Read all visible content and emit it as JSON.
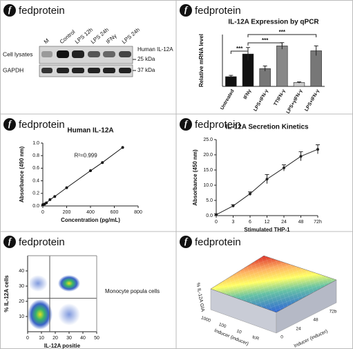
{
  "logo": "f",
  "brand": "fedprotein",
  "blot": {
    "lanes": [
      "M",
      "Control",
      "LPS 12h",
      "LPS 24h",
      "IFNγ",
      "LPS 24h"
    ],
    "rows": [
      "Cell lysates",
      "GAPDH"
    ],
    "markers": [
      "Human IL-12A",
      "25 kDa",
      "37 kDa"
    ]
  },
  "chart_data": [
    {
      "type": "bar",
      "title": "IL-12A Expression by qPCR",
      "ylabel": "Relative mRNA level",
      "categories": [
        "Untreated",
        "IFNγ",
        "LPS+IFN-γ",
        "TTIFN-γ",
        "LPS+γIFN-γ",
        "LPS+IFN-γ"
      ],
      "values": [
        0.3,
        1.0,
        0.55,
        1.25,
        0.12,
        1.1
      ],
      "errors": [
        0.04,
        0.2,
        0.08,
        0.1,
        0.02,
        0.15
      ],
      "colors": [
        "#111111",
        "#111111",
        "#777777",
        "#888888",
        "#cccccc",
        "#777777"
      ],
      "ylim": [
        0,
        1.6
      ],
      "brackets": [
        {
          "label": "***",
          "from": 0,
          "to": 1
        },
        {
          "label": "***",
          "from": 1,
          "to": 3
        },
        {
          "label": "***",
          "from": 1,
          "to": 5
        }
      ]
    },
    {
      "type": "line",
      "title": "Human IL-12A",
      "xlabel": "Concentration (pg/mL)",
      "ylabel": "Absorbance (490 nm)",
      "annotation": "R²=0.999",
      "x": [
        0,
        15,
        30,
        60,
        100,
        200,
        400,
        500,
        670
      ],
      "values": [
        0.02,
        0.03,
        0.05,
        0.1,
        0.15,
        0.29,
        0.56,
        0.69,
        0.93
      ],
      "color": "#111111",
      "xlim": [
        0,
        800
      ],
      "xticks": [
        0,
        200,
        400,
        600,
        800
      ],
      "ylim": [
        0,
        1
      ],
      "yticks": [
        {
          "value": 0,
          "label": "0.0"
        },
        0.2,
        0.4,
        0.6,
        0.8,
        {
          "value": 1,
          "label": "1.0"
        }
      ]
    },
    {
      "type": "line",
      "title": "IL-12A Secretion Kinetics",
      "xlabel": "Stimulated THP-1",
      "ylabel": "Absorbance (450 nm)",
      "categories": [
        "0",
        "3",
        "6",
        "12",
        "24",
        "48",
        "72h"
      ],
      "values": [
        0.3,
        3.2,
        7.2,
        12,
        15.7,
        19.5,
        21.8
      ],
      "errors": [
        0.3,
        0.4,
        0.6,
        1.5,
        1.0,
        1.5,
        1.5
      ],
      "color": "#222222",
      "ylim": [
        0,
        25
      ],
      "yticks": [
        {
          "value": 0,
          "label": "0.0"
        },
        {
          "value": 5,
          "label": "5.0"
        },
        {
          "value": 10,
          "label": "10.0"
        },
        {
          "value": 15,
          "label": "15.0"
        },
        {
          "value": 20,
          "label": "20.0"
        },
        {
          "value": 25,
          "label": "25.0"
        }
      ]
    },
    {
      "type": "scatter",
      "xlabel": "IL-12A positie",
      "ylabel": "% IL-12A cells",
      "label": "Monocyte popula cells",
      "xlim": [
        0,
        50
      ],
      "xticks": [
        0,
        10,
        20,
        30,
        40,
        50
      ],
      "ylim": [
        0,
        50
      ],
      "yticks": [
        10,
        20,
        30,
        40
      ],
      "gates": {
        "x": 16,
        "y": 22
      }
    }
  ],
  "surface": {
    "zlabel": "% IL-12A GIA",
    "left_label": "Inducer (inducer)",
    "left_ticks": [
      "1000",
      "100",
      "10",
      "tcR"
    ],
    "right_label": "Inducer (inducer)",
    "right_ticks": [
      "0",
      "24",
      "48",
      "72b"
    ]
  }
}
